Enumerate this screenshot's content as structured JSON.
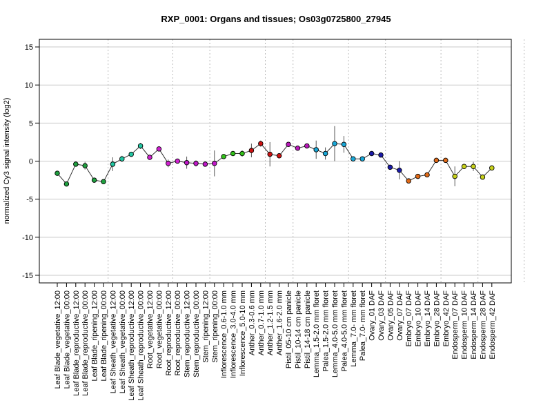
{
  "chart_data": {
    "type": "line",
    "title": "RXP_0001: Organs and tissues; Os03g0725800_27945",
    "ylabel": "normalized Cy3 signal intensity (log2)",
    "xlabel": "",
    "ylim": [
      -16,
      16
    ],
    "yticks": [
      -15,
      -10,
      -5,
      0,
      5,
      10,
      15
    ],
    "grid": true,
    "group_boundaries_after_index": [
      5,
      12,
      16,
      22,
      25,
      31,
      35,
      41,
      45,
      50
    ],
    "categories": [
      "Leaf Blade_vegetative_12:00",
      "Leaf Blade_vegetative_00:00",
      "Leaf Blade_reproductive_12:00",
      "Leaf Blade_reproductive_00:00",
      "Leaf Blade_ripening_12:00",
      "Leaf Blade_ripening_00:00",
      "Leaf Sheath_vegetative_12:00",
      "Leaf Sheath_vegetative_00:00",
      "Leaf Sheath_reproductive_12:00",
      "Leaf Sheath_reproductive_00:00",
      "Root_vegetative_12:00",
      "Root_vegetative_00:00",
      "Root_reproductive_12:00",
      "Root_reproductive_00:00",
      "Stem_reproductive_12:00",
      "Stem_reproductive_00:00",
      "Stem_ripening_12:00",
      "Stem_ripening_00:00",
      "Inflorescence_0.6-1.0 mm",
      "Inflorescence_3.0-4.0 mm",
      "Inflorescence_5.0-10 mm",
      "Anther_0.3-0.6 mm",
      "Anther_0.7-1.0 mm",
      "Anther_1.2-1.5 mm",
      "Anther_1.6-2.0 mm",
      "Pistil_05-10 cm panicle",
      "Pistil_10-14 cm panicle",
      "Pistil_14-18 cm panicle",
      "Lemma_1.5-2.0 mm floret",
      "Palea_1.5-2.0 mm floret",
      "Lemma_4.0-5.0 mm floret",
      "Palea_4.0-5.0 mm floret",
      "Lemma_7.0- mm floret",
      "Palea_7.0- mm floret",
      "Ovary_01 DAF",
      "Ovary_03 DAF",
      "Ovary_05 DAF",
      "Ovary_07 DAF",
      "Embryo_07 DAF",
      "Embryo_10 DAF",
      "Embryo_14 DAF",
      "Embryo_28 DAF",
      "Embryo_42 DAF",
      "Endosperm_07 DAF",
      "Endosperm_10 DAF",
      "Endosperm_14 DAF",
      "Endosperm_28 DAF",
      "Endosperm_42 DAF"
    ],
    "series": [
      {
        "values": [
          -1.6,
          -3.0,
          -0.4,
          -0.6,
          -2.5,
          -2.7,
          -0.4,
          0.3,
          0.9,
          2.0,
          0.5,
          1.6,
          -0.3,
          0.0,
          -0.2,
          -0.3,
          -0.4,
          -0.3,
          0.6,
          1.0,
          1.0,
          1.4,
          2.3,
          0.9,
          0.7,
          2.2,
          1.7,
          2.0,
          1.5,
          1.0,
          2.3,
          2.2,
          0.3,
          0.3,
          1.0,
          0.8,
          -0.8,
          -1.2,
          -2.6,
          -2.0,
          -1.8,
          0.1,
          0.1,
          -2.0,
          -0.7,
          -0.7,
          -2.1,
          -0.9
        ],
        "errors": [
          0.1,
          0.1,
          0.1,
          0.5,
          0.2,
          0.1,
          0.9,
          0.4,
          0.3,
          0.4,
          0.1,
          0.3,
          0.5,
          0.1,
          0.8,
          0.4,
          0.2,
          1.7,
          0.3,
          0.1,
          0.4,
          0.9,
          0.4,
          1.6,
          0.1,
          0.2,
          0.3,
          0.3,
          1.2,
          0.8,
          2.3,
          1.1,
          0.1,
          0.3,
          0.1,
          0.2,
          0.1,
          1.2,
          0.1,
          0.2,
          0.3,
          0.1,
          0.3,
          1.3,
          0.3,
          0.6,
          0.3,
          0.3
        ],
        "colors": [
          "#1f9f3f",
          "#1f9f3f",
          "#1f9f3f",
          "#1f9f3f",
          "#1f9f3f",
          "#1f9f3f",
          "#22c6a2",
          "#22c6a2",
          "#22c6a2",
          "#22c6a2",
          "#d020d0",
          "#d020d0",
          "#d020d0",
          "#d020d0",
          "#c018c8",
          "#c018c8",
          "#c018c8",
          "#c018c8",
          "#33c11a",
          "#33c11a",
          "#33c11a",
          "#cc1111",
          "#cc1111",
          "#cc1111",
          "#cc1111",
          "#b818b8",
          "#b818b8",
          "#b818b8",
          "#19a8d8",
          "#19a8d8",
          "#19a8d8",
          "#19a8d8",
          "#19a8d8",
          "#19a8d8",
          "#1a1aa8",
          "#1a1aa8",
          "#1a1aa8",
          "#1a1aa8",
          "#e06a18",
          "#e06a18",
          "#e06a18",
          "#e06a18",
          "#e06a18",
          "#c8d21a",
          "#c8d21a",
          "#c8d21a",
          "#c8d21a",
          "#c8d21a"
        ]
      }
    ]
  }
}
